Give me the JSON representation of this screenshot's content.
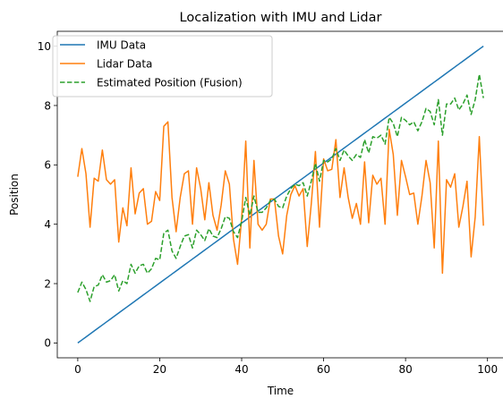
{
  "chart_data": {
    "type": "line",
    "title": "Localization with IMU and Lidar",
    "xlabel": "Time",
    "ylabel": "Position",
    "xlim": [
      -5,
      104
    ],
    "ylim": [
      -0.5,
      10.5
    ],
    "xticks": [
      0,
      20,
      40,
      60,
      80,
      100
    ],
    "yticks": [
      0,
      2,
      4,
      6,
      8,
      10
    ],
    "grid": false,
    "legend_position": "upper-left",
    "series": [
      {
        "name": "IMU Data",
        "color": "#1f77b4",
        "style": "solid",
        "x_start": 0,
        "values": [
          0.0,
          0.101,
          0.202,
          0.303,
          0.404,
          0.505,
          0.606,
          0.707,
          0.808,
          0.909,
          1.01,
          1.111,
          1.212,
          1.313,
          1.414,
          1.515,
          1.616,
          1.717,
          1.818,
          1.919,
          2.02,
          2.121,
          2.222,
          2.323,
          2.424,
          2.525,
          2.626,
          2.727,
          2.828,
          2.929,
          3.03,
          3.131,
          3.232,
          3.333,
          3.434,
          3.535,
          3.636,
          3.737,
          3.838,
          3.939,
          4.04,
          4.141,
          4.242,
          4.343,
          4.444,
          4.545,
          4.646,
          4.747,
          4.848,
          4.949,
          5.051,
          5.152,
          5.253,
          5.354,
          5.455,
          5.556,
          5.657,
          5.758,
          5.859,
          5.96,
          6.061,
          6.162,
          6.263,
          6.364,
          6.465,
          6.566,
          6.667,
          6.768,
          6.869,
          6.97,
          7.071,
          7.172,
          7.273,
          7.374,
          7.475,
          7.576,
          7.677,
          7.778,
          7.879,
          7.98,
          8.081,
          8.182,
          8.283,
          8.384,
          8.485,
          8.586,
          8.687,
          8.788,
          8.889,
          8.99,
          9.091,
          9.192,
          9.293,
          9.394,
          9.495,
          9.596,
          9.697,
          9.798,
          9.899,
          10.0
        ]
      },
      {
        "name": "Lidar Data",
        "color": "#ff7f0e",
        "style": "solid",
        "x_start": 0,
        "values": [
          5.6,
          6.55,
          5.7,
          3.9,
          5.55,
          5.45,
          6.5,
          5.5,
          5.35,
          5.5,
          3.4,
          4.55,
          3.95,
          5.9,
          4.35,
          5.05,
          5.2,
          4.0,
          4.1,
          5.1,
          4.8,
          7.3,
          7.45,
          4.9,
          3.75,
          4.9,
          5.7,
          5.8,
          4.0,
          5.9,
          5.2,
          4.15,
          5.4,
          4.3,
          3.8,
          4.65,
          5.8,
          5.35,
          3.5,
          2.65,
          4.2,
          6.8,
          3.2,
          6.15,
          4.0,
          3.8,
          4.0,
          4.85,
          4.85,
          3.6,
          3.0,
          4.3,
          5.0,
          5.3,
          4.95,
          5.2,
          3.25,
          4.7,
          6.45,
          3.9,
          6.2,
          5.8,
          5.85,
          6.85,
          4.9,
          5.9,
          4.9,
          4.2,
          4.7,
          4.0,
          6.1,
          4.05,
          5.65,
          5.35,
          5.55,
          4.0,
          7.2,
          6.35,
          4.3,
          6.15,
          5.6,
          5.0,
          5.05,
          4.0,
          4.95,
          6.15,
          5.4,
          3.2,
          6.8,
          2.35,
          5.5,
          5.25,
          5.7,
          3.9,
          4.6,
          5.45,
          2.9,
          4.25,
          6.95,
          3.95
        ]
      },
      {
        "name": "Estimated Position (Fusion)",
        "color": "#2ca02c",
        "style": "dashed",
        "x_start": 0,
        "values": [
          1.7,
          2.05,
          1.8,
          1.4,
          1.9,
          1.95,
          2.3,
          2.05,
          2.1,
          2.3,
          1.75,
          2.1,
          2.0,
          2.65,
          2.35,
          2.6,
          2.65,
          2.35,
          2.5,
          2.85,
          2.8,
          3.7,
          3.8,
          3.1,
          2.85,
          3.25,
          3.6,
          3.65,
          3.2,
          3.8,
          3.65,
          3.45,
          3.85,
          3.6,
          3.55,
          3.85,
          4.25,
          4.2,
          3.75,
          3.55,
          4.1,
          4.9,
          4.3,
          4.95,
          4.4,
          4.4,
          4.55,
          4.8,
          4.85,
          4.6,
          4.55,
          4.95,
          5.2,
          5.35,
          5.3,
          5.4,
          4.95,
          5.45,
          6.05,
          5.45,
          6.15,
          6.1,
          6.2,
          6.55,
          6.15,
          6.5,
          6.3,
          6.15,
          6.35,
          6.25,
          6.85,
          6.4,
          6.95,
          6.9,
          7.0,
          6.7,
          7.6,
          7.4,
          6.95,
          7.6,
          7.5,
          7.35,
          7.45,
          7.15,
          7.45,
          7.9,
          7.8,
          7.35,
          8.2,
          7.0,
          8.05,
          8.05,
          8.25,
          7.85,
          8.05,
          8.35,
          7.7,
          8.2,
          9.05,
          8.25
        ]
      }
    ]
  }
}
